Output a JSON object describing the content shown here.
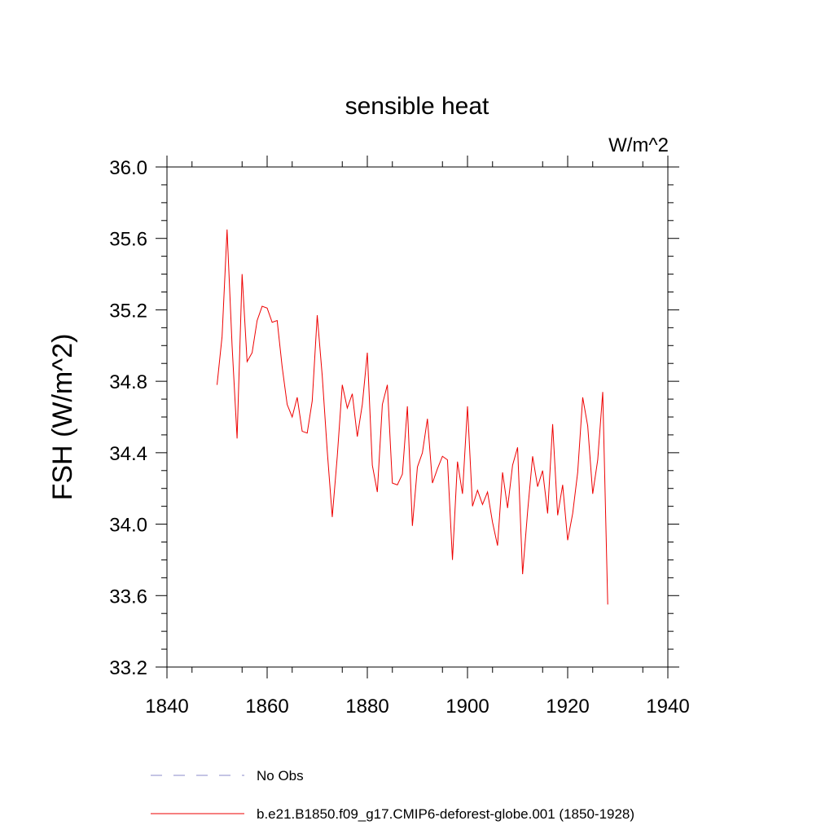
{
  "chart_data": {
    "type": "line",
    "title": "sensible heat",
    "units_label": "W/m^2",
    "ylabel": "FSH  (W/m^2)",
    "xlabel": "",
    "xlim": [
      1840,
      1940
    ],
    "ylim": [
      33.2,
      36.0
    ],
    "x_ticks": [
      "1840",
      "1860",
      "1880",
      "1900",
      "1920",
      "1940"
    ],
    "y_ticks": [
      "33.2",
      "33.6",
      "34.0",
      "34.4",
      "34.8",
      "35.2",
      "35.6",
      "36.0"
    ],
    "grid": false,
    "legend_position": "bottom",
    "legend": [
      {
        "label": "No Obs",
        "color": "#8a88c8",
        "style": "dashed"
      },
      {
        "label": "b.e21.B1850.f09_g17.CMIP6-deforest-globe.001 (1850-1928)",
        "color": "#ee0000",
        "style": "solid"
      }
    ],
    "series": [
      {
        "name": "b.e21.B1850.f09_g17.CMIP6-deforest-globe.001 (1850-1928)",
        "color": "#ee0000",
        "x": [
          1850,
          1851,
          1852,
          1853,
          1854,
          1855,
          1856,
          1857,
          1858,
          1859,
          1860,
          1861,
          1862,
          1863,
          1864,
          1865,
          1866,
          1867,
          1868,
          1869,
          1870,
          1871,
          1872,
          1873,
          1874,
          1875,
          1876,
          1877,
          1878,
          1879,
          1880,
          1881,
          1882,
          1883,
          1884,
          1885,
          1886,
          1887,
          1888,
          1889,
          1890,
          1891,
          1892,
          1893,
          1894,
          1895,
          1896,
          1897,
          1898,
          1899,
          1900,
          1901,
          1902,
          1903,
          1904,
          1905,
          1906,
          1907,
          1908,
          1909,
          1910,
          1911,
          1912,
          1913,
          1914,
          1915,
          1916,
          1917,
          1918,
          1919,
          1920,
          1921,
          1922,
          1923,
          1924,
          1925,
          1926,
          1927,
          1928
        ],
        "values": [
          34.78,
          35.05,
          35.65,
          35.0,
          34.48,
          35.4,
          34.91,
          34.96,
          35.14,
          35.22,
          35.21,
          35.13,
          35.14,
          34.88,
          34.67,
          34.6,
          34.71,
          34.52,
          34.51,
          34.69,
          35.17,
          34.83,
          34.41,
          34.04,
          34.38,
          34.78,
          34.65,
          34.73,
          34.49,
          34.67,
          34.96,
          34.33,
          34.18,
          34.67,
          34.78,
          34.23,
          34.22,
          34.28,
          34.66,
          33.99,
          34.32,
          34.4,
          34.59,
          34.23,
          34.31,
          34.38,
          34.36,
          33.8,
          34.35,
          34.17,
          34.66,
          34.1,
          34.19,
          34.11,
          34.18,
          34.01,
          33.88,
          34.29,
          34.09,
          34.33,
          34.43,
          33.72,
          34.07,
          34.38,
          34.21,
          34.3,
          34.06,
          34.56,
          34.05,
          34.22,
          33.91,
          34.06,
          34.29,
          34.71,
          34.55,
          34.17,
          34.36,
          34.74,
          33.55
        ]
      }
    ]
  }
}
